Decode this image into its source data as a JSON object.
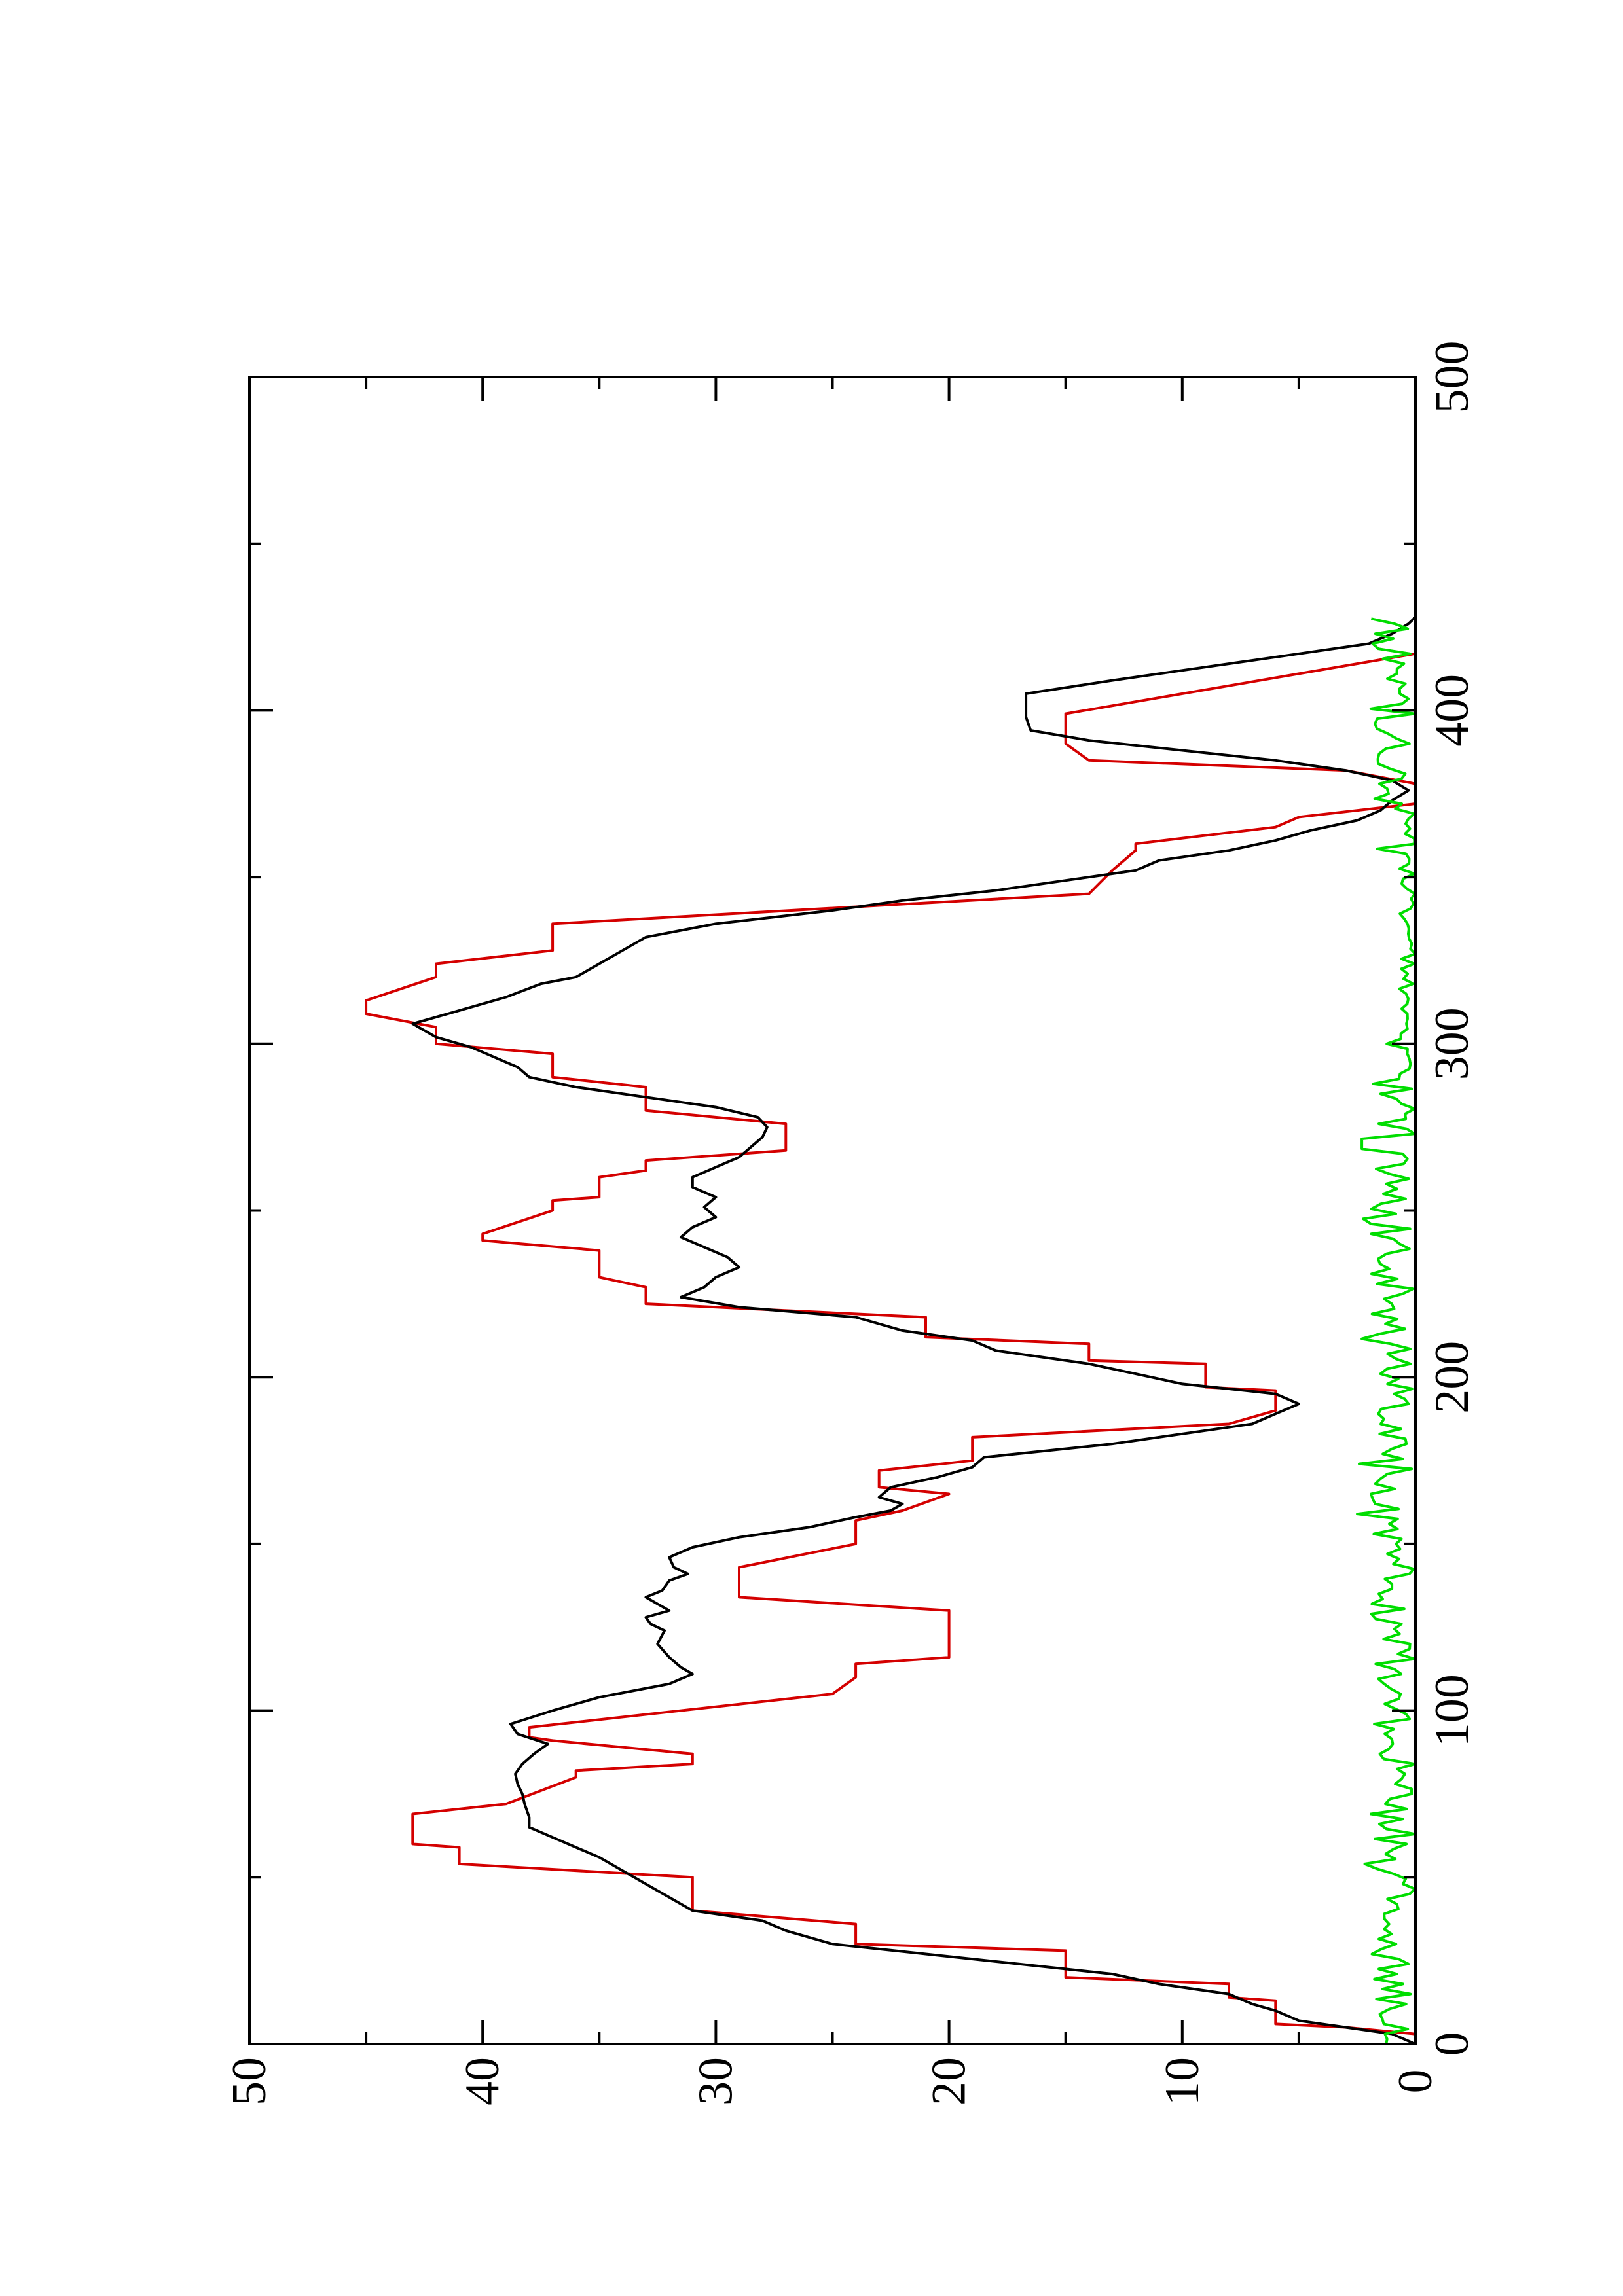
{
  "chart_data": {
    "type": "line",
    "orientation": "rotated-90-ccw",
    "title": "",
    "xlabel": "",
    "ylabel": "",
    "xlim": [
      0,
      500
    ],
    "ylim": [
      0,
      50
    ],
    "x_ticks": [
      0,
      100,
      200,
      300,
      400,
      500
    ],
    "y_ticks": [
      0,
      10,
      20,
      30,
      40,
      50
    ],
    "grid": false,
    "legend": "none",
    "series": [
      {
        "color": "#d40000",
        "style": "step",
        "points": [
          [
            0,
            0
          ],
          [
            3,
            0
          ],
          [
            5,
            3
          ],
          [
            6,
            6
          ],
          [
            13,
            6
          ],
          [
            14,
            8
          ],
          [
            18,
            8
          ],
          [
            20,
            15
          ],
          [
            28,
            15
          ],
          [
            30,
            24
          ],
          [
            36,
            24
          ],
          [
            40,
            31
          ],
          [
            50,
            31
          ],
          [
            54,
            41
          ],
          [
            59,
            41
          ],
          [
            60,
            43
          ],
          [
            69,
            43
          ],
          [
            72,
            39
          ],
          [
            80,
            36
          ],
          [
            82,
            36
          ],
          [
            84,
            31
          ],
          [
            87,
            31
          ],
          [
            91,
            37
          ],
          [
            92,
            38
          ],
          [
            95,
            38
          ],
          [
            105,
            25
          ],
          [
            110,
            24
          ],
          [
            114,
            24
          ],
          [
            116,
            20
          ],
          [
            130,
            20
          ],
          [
            134,
            29
          ],
          [
            143,
            29
          ],
          [
            150,
            24
          ],
          [
            157,
            24
          ],
          [
            160,
            22
          ],
          [
            165,
            20
          ],
          [
            167,
            23
          ],
          [
            172,
            23
          ],
          [
            175,
            19
          ],
          [
            182,
            19
          ],
          [
            186,
            8
          ],
          [
            190,
            6
          ],
          [
            196,
            6
          ],
          [
            197,
            9
          ],
          [
            204,
            9
          ],
          [
            205,
            14
          ],
          [
            210,
            14
          ],
          [
            212,
            21
          ],
          [
            218,
            21
          ],
          [
            222,
            33
          ],
          [
            227,
            33
          ],
          [
            230,
            35
          ],
          [
            238,
            35
          ],
          [
            241,
            40
          ],
          [
            243,
            40
          ],
          [
            250,
            37
          ],
          [
            253,
            37
          ],
          [
            254,
            35
          ],
          [
            260,
            35
          ],
          [
            262,
            33
          ],
          [
            265,
            33
          ],
          [
            268,
            27
          ],
          [
            276,
            27
          ],
          [
            280,
            33
          ],
          [
            287,
            33
          ],
          [
            290,
            37
          ],
          [
            297,
            37
          ],
          [
            300,
            42
          ],
          [
            305,
            42
          ],
          [
            309,
            45
          ],
          [
            313,
            45
          ],
          [
            320,
            42
          ],
          [
            324,
            42
          ],
          [
            328,
            37
          ],
          [
            333,
            37
          ],
          [
            336,
            37
          ],
          [
            345,
            14
          ],
          [
            352,
            13
          ],
          [
            358,
            12
          ],
          [
            360,
            12
          ],
          [
            365,
            6
          ],
          [
            368,
            5
          ],
          [
            372,
            0
          ],
          [
            378,
            0
          ],
          [
            382,
            3
          ],
          [
            385,
            14
          ],
          [
            390,
            15
          ],
          [
            399,
            15
          ],
          [
            417,
            0
          ],
          [
            428,
            0
          ]
        ]
      },
      {
        "color": "#000000",
        "style": "line",
        "points": [
          [
            0,
            0
          ],
          [
            3,
            1
          ],
          [
            5,
            3
          ],
          [
            7,
            5
          ],
          [
            10,
            6
          ],
          [
            12,
            7
          ],
          [
            15,
            8
          ],
          [
            18,
            11
          ],
          [
            21,
            13
          ],
          [
            24,
            17
          ],
          [
            27,
            21
          ],
          [
            30,
            25
          ],
          [
            34,
            27
          ],
          [
            37,
            28
          ],
          [
            40,
            31
          ],
          [
            44,
            32
          ],
          [
            48,
            33
          ],
          [
            52,
            34
          ],
          [
            56,
            35
          ],
          [
            59,
            36
          ],
          [
            62,
            37
          ],
          [
            65,
            38
          ],
          [
            68,
            38
          ],
          [
            72,
            38.2
          ],
          [
            75,
            38.3
          ],
          [
            78,
            38.5
          ],
          [
            81,
            38.6
          ],
          [
            84,
            38.3
          ],
          [
            87,
            37.8
          ],
          [
            90,
            37.2
          ],
          [
            93,
            38.5
          ],
          [
            96,
            38.8
          ],
          [
            100,
            37
          ],
          [
            104,
            35
          ],
          [
            108,
            32
          ],
          [
            111,
            31
          ],
          [
            113,
            31.5
          ],
          [
            116,
            32
          ],
          [
            120,
            32.5
          ],
          [
            124,
            32.2
          ],
          [
            126,
            32.8
          ],
          [
            128,
            33
          ],
          [
            130,
            32
          ],
          [
            132,
            32.5
          ],
          [
            134,
            33
          ],
          [
            136,
            32.3
          ],
          [
            139,
            32
          ],
          [
            141,
            31.2
          ],
          [
            143,
            31.8
          ],
          [
            146,
            32
          ],
          [
            149,
            31
          ],
          [
            152,
            29
          ],
          [
            155,
            26
          ],
          [
            158,
            24
          ],
          [
            160,
            22.5
          ],
          [
            162,
            22
          ],
          [
            164,
            23
          ],
          [
            167,
            22.5
          ],
          [
            170,
            20.5
          ],
          [
            173,
            19
          ],
          [
            176,
            18.5
          ],
          [
            180,
            13
          ],
          [
            183,
            10
          ],
          [
            186,
            7
          ],
          [
            189,
            6
          ],
          [
            192,
            5
          ],
          [
            195,
            6
          ],
          [
            198,
            10
          ],
          [
            201,
            12
          ],
          [
            204,
            14
          ],
          [
            208,
            18
          ],
          [
            211,
            19
          ],
          [
            214,
            22
          ],
          [
            218,
            24
          ],
          [
            221,
            29
          ],
          [
            224,
            31.5
          ],
          [
            227,
            30.5
          ],
          [
            230,
            30
          ],
          [
            233,
            29
          ],
          [
            236,
            29.5
          ],
          [
            239,
            30.5
          ],
          [
            242,
            31.5
          ],
          [
            245,
            31
          ],
          [
            248,
            30
          ],
          [
            251,
            30.5
          ],
          [
            254,
            30
          ],
          [
            257,
            31
          ],
          [
            260,
            31
          ],
          [
            263,
            30
          ],
          [
            266,
            29
          ],
          [
            269,
            28.5
          ],
          [
            272,
            28
          ],
          [
            275,
            27.8
          ],
          [
            278,
            28.2
          ],
          [
            281,
            30
          ],
          [
            284,
            33
          ],
          [
            287,
            36
          ],
          [
            290,
            38
          ],
          [
            293,
            38.5
          ],
          [
            296,
            39.5
          ],
          [
            299,
            40.5
          ],
          [
            302,
            42
          ],
          [
            306,
            43
          ],
          [
            310,
            41
          ],
          [
            314,
            39
          ],
          [
            318,
            37.5
          ],
          [
            320,
            36
          ],
          [
            324,
            35
          ],
          [
            328,
            34
          ],
          [
            332,
            33
          ],
          [
            336,
            30
          ],
          [
            340,
            25
          ],
          [
            343,
            22
          ],
          [
            346,
            18
          ],
          [
            349,
            15
          ],
          [
            352,
            12
          ],
          [
            355,
            11
          ],
          [
            358,
            8
          ],
          [
            361,
            6
          ],
          [
            364,
            4.5
          ],
          [
            367,
            2.5
          ],
          [
            370,
            1.5
          ],
          [
            373,
            1
          ],
          [
            376,
            0.3
          ],
          [
            379,
            1
          ],
          [
            382,
            3
          ],
          [
            385,
            6
          ],
          [
            388,
            10
          ],
          [
            391,
            14
          ],
          [
            394,
            16.5
          ],
          [
            398,
            16.7
          ],
          [
            405,
            16.7
          ],
          [
            409,
            13
          ],
          [
            413,
            9
          ],
          [
            417,
            5
          ],
          [
            420,
            2
          ],
          [
            423,
            1
          ],
          [
            426,
            0.3
          ],
          [
            428,
            0
          ]
        ]
      },
      {
        "color": "#00dd00",
        "style": "noise",
        "points": []
      }
    ]
  }
}
